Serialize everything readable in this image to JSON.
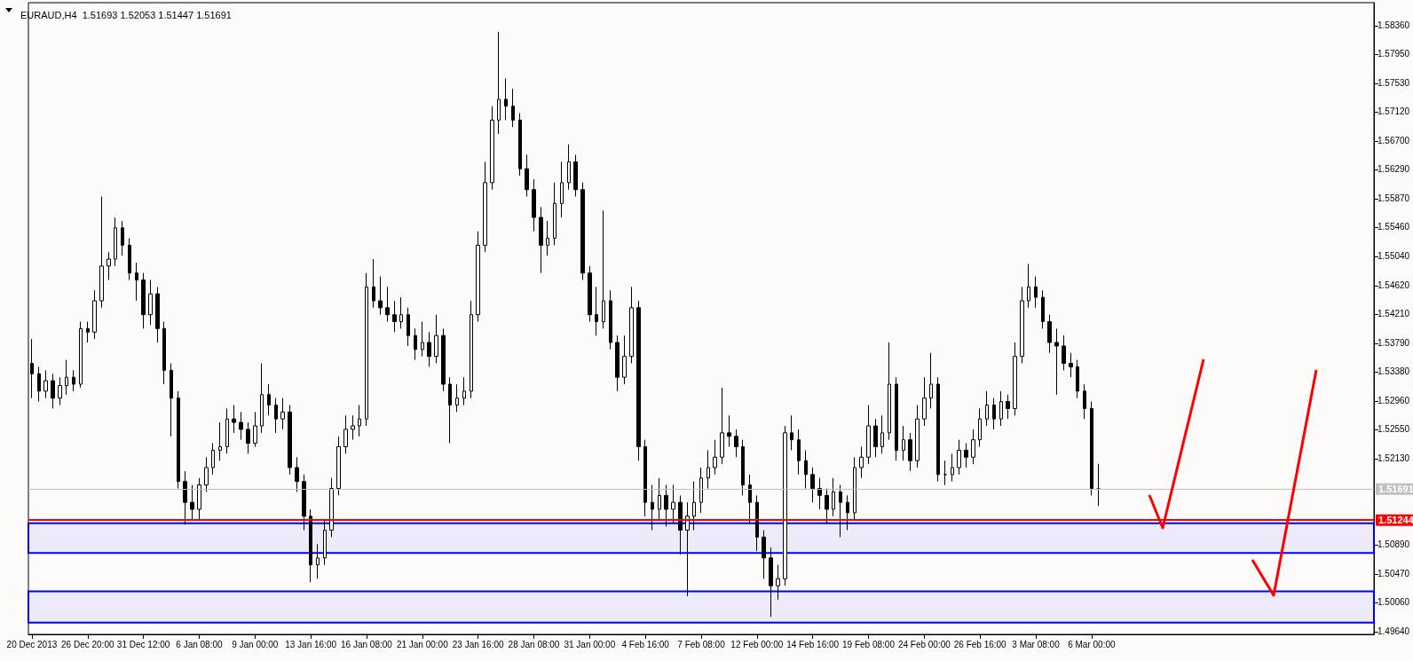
{
  "chart_data": {
    "type": "candlestick",
    "title": "EURAUD,H4  1.51693 1.52053 1.51447 1.51691",
    "categories": [
      "20 Dec 2013",
      null,
      null,
      null,
      null,
      null,
      null,
      null,
      "26 Dec 20:00",
      null,
      null,
      null,
      null,
      null,
      null,
      null,
      "31 Dec 12:00",
      null,
      null,
      null,
      null,
      null,
      null,
      null,
      "6 Jan 08:00",
      null,
      null,
      null,
      null,
      null,
      null,
      null,
      "9 Jan 00:00",
      null,
      null,
      null,
      null,
      null,
      null,
      null,
      "13 Jan 16:00",
      null,
      null,
      null,
      null,
      null,
      null,
      null,
      "16 Jan 08:00",
      null,
      null,
      null,
      null,
      null,
      null,
      null,
      "21 Jan 00:00",
      null,
      null,
      null,
      null,
      null,
      null,
      null,
      "23 Jan 16:00",
      null,
      null,
      null,
      null,
      null,
      null,
      null,
      "28 Jan 08:00",
      null,
      null,
      null,
      null,
      null,
      null,
      null,
      "31 Jan 00:00",
      null,
      null,
      null,
      null,
      null,
      null,
      null,
      "4 Feb 16:00",
      null,
      null,
      null,
      null,
      null,
      null,
      null,
      "7 Feb 08:00",
      null,
      null,
      null,
      null,
      null,
      null,
      null,
      "12 Feb 00:00",
      null,
      null,
      null,
      null,
      null,
      null,
      null,
      "14 Feb 16:00",
      null,
      null,
      null,
      null,
      null,
      null,
      null,
      "19 Feb 08:00",
      null,
      null,
      null,
      null,
      null,
      null,
      null,
      "24 Feb 00:00",
      null,
      null,
      null,
      null,
      null,
      null,
      null,
      "26 Feb 16:00",
      null,
      null,
      null,
      null,
      null,
      null,
      null,
      "3 Mar 08:00",
      null,
      null,
      null,
      null,
      null,
      null,
      null,
      "6 Mar 00:00",
      null,
      null,
      null,
      null,
      null,
      null,
      null,
      null,
      null,
      null,
      null,
      null,
      null,
      null,
      null,
      null,
      null,
      null,
      null,
      null,
      null,
      null,
      null,
      null,
      null,
      null,
      null,
      null,
      null,
      null,
      null,
      null,
      null,
      null,
      null,
      null,
      null,
      null,
      null,
      null
    ],
    "ohlc": [
      [
        1.535,
        1.5385,
        1.53,
        1.5335
      ],
      [
        1.5335,
        1.5345,
        1.5295,
        1.531
      ],
      [
        1.531,
        1.534,
        1.53,
        1.5325
      ],
      [
        1.5325,
        1.5335,
        1.5285,
        1.53
      ],
      [
        1.53,
        1.533,
        1.529,
        1.5318
      ],
      [
        1.5318,
        1.5355,
        1.5305,
        1.533
      ],
      [
        1.533,
        1.534,
        1.531,
        1.532
      ],
      [
        1.532,
        1.541,
        1.5315,
        1.54
      ],
      [
        1.54,
        1.541,
        1.538,
        1.5395
      ],
      [
        1.5395,
        1.5455,
        1.5385,
        1.544
      ],
      [
        1.544,
        1.559,
        1.543,
        1.549
      ],
      [
        1.549,
        1.551,
        1.547,
        1.55
      ],
      [
        1.55,
        1.556,
        1.549,
        1.5545
      ],
      [
        1.5545,
        1.5555,
        1.5505,
        1.552
      ],
      [
        1.552,
        1.553,
        1.547,
        1.548
      ],
      [
        1.548,
        1.5495,
        1.544,
        1.547
      ],
      [
        1.547,
        1.548,
        1.54,
        1.542
      ],
      [
        1.542,
        1.547,
        1.5405,
        1.545
      ],
      [
        1.545,
        1.546,
        1.538,
        1.54
      ],
      [
        1.54,
        1.541,
        1.532,
        1.534
      ],
      [
        1.534,
        1.535,
        1.5245,
        1.53
      ],
      [
        1.53,
        1.531,
        1.517,
        1.518
      ],
      [
        1.518,
        1.5195,
        1.5118,
        1.515
      ],
      [
        1.515,
        1.5175,
        1.5125,
        1.514
      ],
      [
        1.514,
        1.5185,
        1.5124,
        1.5175
      ],
      [
        1.5175,
        1.5215,
        1.5165,
        1.52
      ],
      [
        1.52,
        1.5235,
        1.519,
        1.5225
      ],
      [
        1.5225,
        1.5265,
        1.521,
        1.523
      ],
      [
        1.523,
        1.5285,
        1.522,
        1.527
      ],
      [
        1.527,
        1.529,
        1.525,
        1.5265
      ],
      [
        1.5265,
        1.528,
        1.524,
        1.5255
      ],
      [
        1.5255,
        1.5265,
        1.522,
        1.5235
      ],
      [
        1.5235,
        1.528,
        1.523,
        1.526
      ],
      [
        1.526,
        1.535,
        1.525,
        1.5305
      ],
      [
        1.5305,
        1.532,
        1.5275,
        1.529
      ],
      [
        1.529,
        1.53,
        1.525,
        1.527
      ],
      [
        1.527,
        1.53,
        1.5255,
        1.528
      ],
      [
        1.528,
        1.529,
        1.519,
        1.52
      ],
      [
        1.52,
        1.5215,
        1.5165,
        1.518
      ],
      [
        1.518,
        1.519,
        1.511,
        1.513
      ],
      [
        1.513,
        1.514,
        1.5035,
        1.506
      ],
      [
        1.506,
        1.509,
        1.504,
        1.507
      ],
      [
        1.507,
        1.5125,
        1.506,
        1.511
      ],
      [
        1.511,
        1.5185,
        1.51,
        1.517
      ],
      [
        1.517,
        1.5245,
        1.516,
        1.523
      ],
      [
        1.523,
        1.5275,
        1.522,
        1.5255
      ],
      [
        1.5255,
        1.5275,
        1.524,
        1.526
      ],
      [
        1.526,
        1.529,
        1.5245,
        1.527
      ],
      [
        1.527,
        1.548,
        1.526,
        1.546
      ],
      [
        1.546,
        1.55,
        1.543,
        1.544
      ],
      [
        1.544,
        1.5475,
        1.542,
        1.543
      ],
      [
        1.543,
        1.546,
        1.541,
        1.542
      ],
      [
        1.542,
        1.544,
        1.5395,
        1.541
      ],
      [
        1.541,
        1.5445,
        1.54,
        1.542
      ],
      [
        1.542,
        1.543,
        1.5375,
        1.539
      ],
      [
        1.539,
        1.54,
        1.5355,
        1.537
      ],
      [
        1.537,
        1.541,
        1.536,
        1.538
      ],
      [
        1.538,
        1.5395,
        1.5345,
        1.536
      ],
      [
        1.536,
        1.542,
        1.535,
        1.539
      ],
      [
        1.539,
        1.54,
        1.531,
        1.532
      ],
      [
        1.532,
        1.533,
        1.5235,
        1.529
      ],
      [
        1.529,
        1.532,
        1.528,
        1.53
      ],
      [
        1.53,
        1.533,
        1.529,
        1.531
      ],
      [
        1.531,
        1.544,
        1.53,
        1.542
      ],
      [
        1.542,
        1.554,
        1.541,
        1.552
      ],
      [
        1.552,
        1.564,
        1.551,
        1.561
      ],
      [
        1.561,
        1.572,
        1.56,
        1.57
      ],
      [
        1.57,
        1.5827,
        1.568,
        1.573
      ],
      [
        1.573,
        1.576,
        1.57,
        1.572
      ],
      [
        1.572,
        1.5745,
        1.569,
        1.57
      ],
      [
        1.57,
        1.571,
        1.562,
        1.563
      ],
      [
        1.563,
        1.565,
        1.559,
        1.56
      ],
      [
        1.56,
        1.5615,
        1.554,
        1.556
      ],
      [
        1.556,
        1.5575,
        1.548,
        1.552
      ],
      [
        1.552,
        1.5555,
        1.5505,
        1.553
      ],
      [
        1.553,
        1.561,
        1.552,
        1.558
      ],
      [
        1.558,
        1.564,
        1.556,
        1.561
      ],
      [
        1.561,
        1.5665,
        1.56,
        1.564
      ],
      [
        1.564,
        1.565,
        1.559,
        1.56
      ],
      [
        1.56,
        1.561,
        1.547,
        1.548
      ],
      [
        1.548,
        1.549,
        1.541,
        1.542
      ],
      [
        1.542,
        1.546,
        1.539,
        1.541
      ],
      [
        1.541,
        1.557,
        1.54,
        1.544
      ],
      [
        1.544,
        1.5455,
        1.537,
        1.538
      ],
      [
        1.538,
        1.539,
        1.531,
        1.533
      ],
      [
        1.533,
        1.539,
        1.532,
        1.536
      ],
      [
        1.536,
        1.546,
        1.535,
        1.543
      ],
      [
        1.543,
        1.544,
        1.521,
        1.523
      ],
      [
        1.523,
        1.524,
        1.513,
        1.515
      ],
      [
        1.515,
        1.5175,
        1.511,
        1.514
      ],
      [
        1.514,
        1.5185,
        1.5125,
        1.516
      ],
      [
        1.516,
        1.5175,
        1.5115,
        1.514
      ],
      [
        1.514,
        1.5175,
        1.512,
        1.515
      ],
      [
        1.515,
        1.516,
        1.5075,
        1.511
      ],
      [
        1.511,
        1.515,
        1.5015,
        1.513
      ],
      [
        1.513,
        1.518,
        1.511,
        1.515
      ],
      [
        1.515,
        1.52,
        1.5135,
        1.5185
      ],
      [
        1.5185,
        1.5225,
        1.517,
        1.52
      ],
      [
        1.52,
        1.524,
        1.519,
        1.5215
      ],
      [
        1.5215,
        1.5315,
        1.5205,
        1.525
      ],
      [
        1.525,
        1.5275,
        1.523,
        1.5245
      ],
      [
        1.5245,
        1.5255,
        1.5215,
        1.523
      ],
      [
        1.523,
        1.524,
        1.516,
        1.5175
      ],
      [
        1.5175,
        1.519,
        1.512,
        1.515
      ],
      [
        1.515,
        1.516,
        1.508,
        1.51
      ],
      [
        1.51,
        1.511,
        1.504,
        1.507
      ],
      [
        1.507,
        1.5085,
        1.4985,
        1.503
      ],
      [
        1.503,
        1.506,
        1.501,
        1.504
      ],
      [
        1.504,
        1.526,
        1.503,
        1.525
      ],
      [
        1.525,
        1.5275,
        1.5225,
        1.524
      ],
      [
        1.524,
        1.5255,
        1.519,
        1.521
      ],
      [
        1.521,
        1.5225,
        1.517,
        1.519
      ],
      [
        1.519,
        1.52,
        1.515,
        1.517
      ],
      [
        1.517,
        1.5185,
        1.514,
        1.516
      ],
      [
        1.516,
        1.517,
        1.512,
        1.514
      ],
      [
        1.514,
        1.5185,
        1.513,
        1.5165
      ],
      [
        1.5165,
        1.5175,
        1.51,
        1.515
      ],
      [
        1.515,
        1.516,
        1.511,
        1.5135
      ],
      [
        1.5135,
        1.5215,
        1.5125,
        1.52
      ],
      [
        1.52,
        1.523,
        1.5185,
        1.5215
      ],
      [
        1.5215,
        1.529,
        1.5205,
        1.526
      ],
      [
        1.526,
        1.527,
        1.5215,
        1.523
      ],
      [
        1.523,
        1.5275,
        1.522,
        1.525
      ],
      [
        1.525,
        1.538,
        1.524,
        1.532
      ],
      [
        1.532,
        1.533,
        1.521,
        1.5225
      ],
      [
        1.5225,
        1.526,
        1.521,
        1.524
      ],
      [
        1.524,
        1.525,
        1.5195,
        1.521
      ],
      [
        1.521,
        1.529,
        1.52,
        1.527
      ],
      [
        1.527,
        1.533,
        1.526,
        1.53
      ],
      [
        1.53,
        1.5365,
        1.5285,
        1.532
      ],
      [
        1.532,
        1.533,
        1.518,
        1.519
      ],
      [
        1.519,
        1.521,
        1.5175,
        1.519
      ],
      [
        1.519,
        1.522,
        1.518,
        1.52
      ],
      [
        1.52,
        1.524,
        1.519,
        1.5225
      ],
      [
        1.5225,
        1.5235,
        1.52,
        1.5215
      ],
      [
        1.5215,
        1.5255,
        1.5205,
        1.524
      ],
      [
        1.524,
        1.5285,
        1.523,
        1.527
      ],
      [
        1.527,
        1.531,
        1.526,
        1.529
      ],
      [
        1.529,
        1.53,
        1.5255,
        1.527
      ],
      [
        1.527,
        1.531,
        1.526,
        1.5295
      ],
      [
        1.5295,
        1.5305,
        1.527,
        1.5285
      ],
      [
        1.5285,
        1.538,
        1.5275,
        1.536
      ],
      [
        1.536,
        1.546,
        1.535,
        1.544
      ],
      [
        1.544,
        1.5493,
        1.543,
        1.546
      ],
      [
        1.546,
        1.5475,
        1.543,
        1.5445
      ],
      [
        1.5445,
        1.5455,
        1.54,
        1.541
      ],
      [
        1.541,
        1.542,
        1.5365,
        1.538
      ],
      [
        1.538,
        1.54,
        1.5305,
        1.5375
      ],
      [
        1.5375,
        1.539,
        1.534,
        1.535
      ],
      [
        1.535,
        1.5365,
        1.533,
        1.5345
      ],
      [
        1.5345,
        1.5355,
        1.53,
        1.531
      ],
      [
        1.531,
        1.532,
        1.527,
        1.5285
      ],
      [
        1.5285,
        1.5295,
        1.516,
        1.517
      ],
      [
        1.51693,
        1.52053,
        1.51447,
        1.51691
      ],
      null,
      null,
      null,
      null,
      null,
      null,
      null,
      null,
      null,
      null,
      null,
      null,
      null,
      null,
      null,
      null,
      null,
      null,
      null,
      null,
      null,
      null,
      null,
      null,
      null,
      null,
      null,
      null,
      null,
      null,
      null,
      null,
      null,
      null,
      null,
      null,
      null,
      null,
      null
    ],
    "ylim": [
      1.496,
      1.5869
    ],
    "yticks": [
      {
        "value": 1.5836,
        "label": "1.58360"
      },
      {
        "value": 1.5795,
        "label": "1.57950"
      },
      {
        "value": 1.5753,
        "label": "1.57530"
      },
      {
        "value": 1.5712,
        "label": "1.57120"
      },
      {
        "value": 1.567,
        "label": "1.56700"
      },
      {
        "value": 1.5629,
        "label": "1.56290"
      },
      {
        "value": 1.5587,
        "label": "1.55870"
      },
      {
        "value": 1.5546,
        "label": "1.55460"
      },
      {
        "value": 1.5504,
        "label": "1.55040"
      },
      {
        "value": 1.5462,
        "label": "1.54620"
      },
      {
        "value": 1.5421,
        "label": "1.54210"
      },
      {
        "value": 1.5379,
        "label": "1.53790"
      },
      {
        "value": 1.5338,
        "label": "1.53380"
      },
      {
        "value": 1.5296,
        "label": "1.52960"
      },
      {
        "value": 1.5255,
        "label": "1.52550"
      },
      {
        "value": 1.5213,
        "label": "1.52130"
      },
      {
        "value": 1.5089,
        "label": "1.50890"
      },
      {
        "value": 1.5047,
        "label": "1.50470"
      },
      {
        "value": 1.5006,
        "label": "1.50060"
      },
      {
        "value": 1.4964,
        "label": "1.49640"
      }
    ],
    "ref_lines": [
      {
        "axis": "y",
        "value": 1.51691,
        "label": "1.51691",
        "color": "#c0c0c0"
      },
      {
        "axis": "y",
        "value": 1.51244,
        "label": "1.51244",
        "color": "#ff0000"
      }
    ],
    "bands": [
      {
        "axis": "y",
        "from": 1.5077,
        "to": 1.512,
        "color": "#0000ff"
      },
      {
        "axis": "y",
        "from": 1.4977,
        "to": 1.5022,
        "color": "#0000ff"
      }
    ],
    "grid": false
  }
}
